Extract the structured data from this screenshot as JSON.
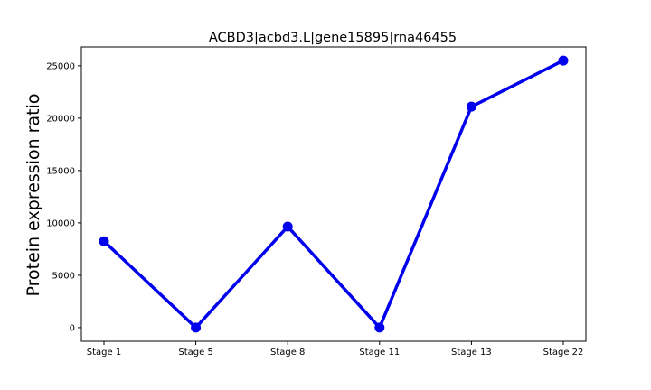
{
  "chart_data": {
    "type": "line",
    "title": "ACBD3|acbd3.L|gene15895|rna46455",
    "xlabel": "",
    "ylabel": "Protein expression ratio",
    "categories": [
      "Stage 1",
      "Stage 5",
      "Stage 8",
      "Stage 11",
      "Stage 13",
      "Stage 22"
    ],
    "series": [
      {
        "values": [
          8250,
          0,
          9650,
          0,
          21100,
          25500
        ]
      }
    ],
    "ylim": [
      -1300,
      26800
    ],
    "yticks": [
      0,
      5000,
      10000,
      15000,
      20000,
      25000
    ],
    "ytick_labels": [
      "0",
      "5000",
      "10000",
      "15000",
      "20000",
      "25000"
    ],
    "grid": false,
    "legend": "none",
    "colors": {
      "line": "#0000ee",
      "axes": "#000000",
      "background": "#ffffff"
    }
  }
}
